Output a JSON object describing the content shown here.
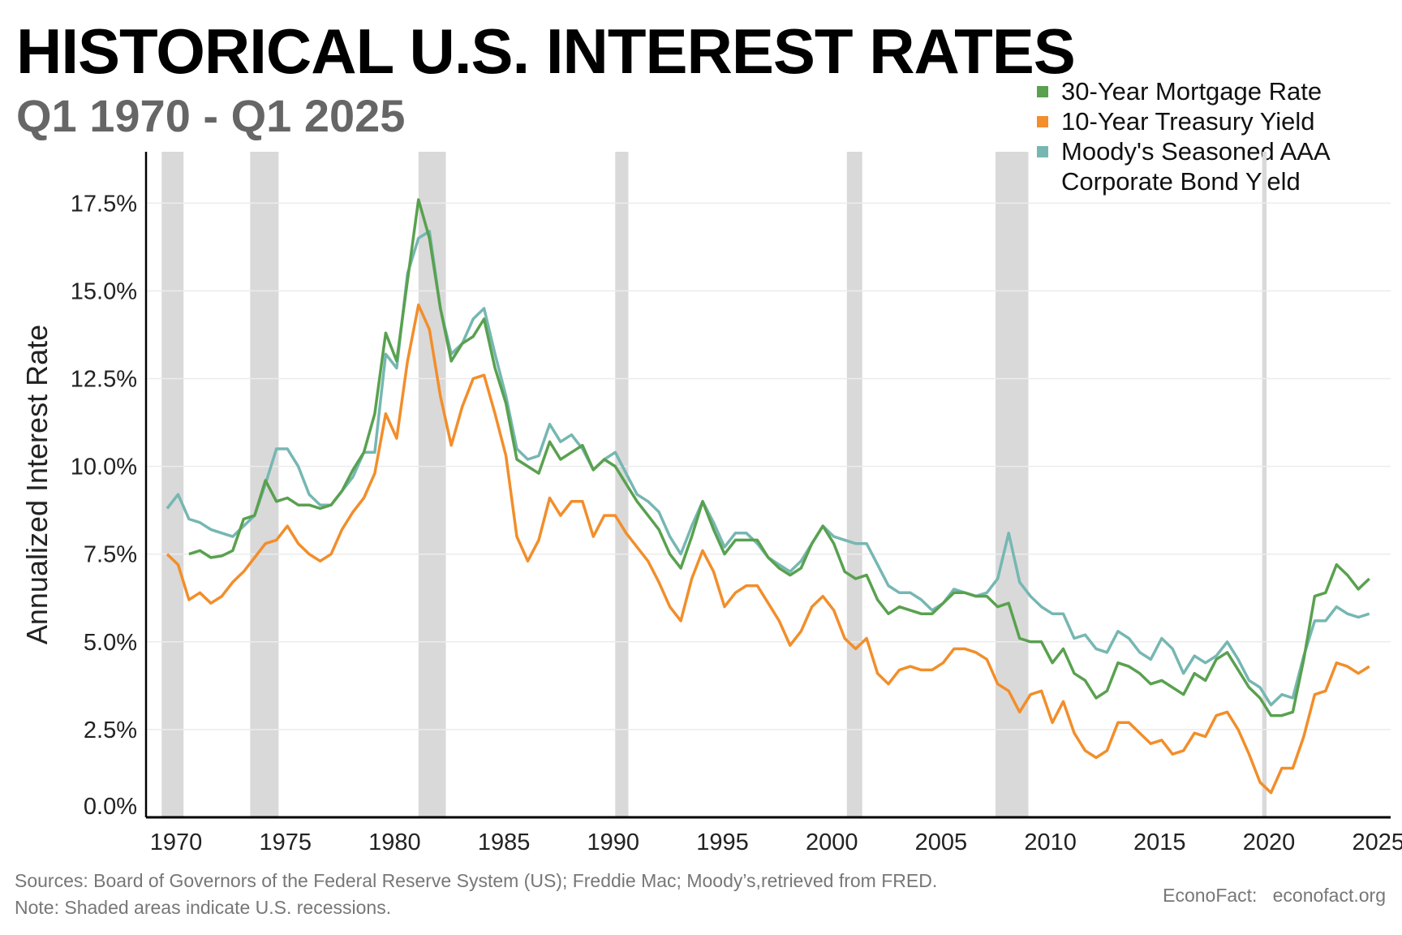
{
  "chart_data": {
    "type": "line",
    "title": "HISTORICAL U.S. INTEREST RATES",
    "subtitle": "Q1 1970 - Q1 2025",
    "ylabel": "Annualized Interest Rate",
    "xlabel": "",
    "ylim": [
      0,
      18.5
    ],
    "xlim": [
      1969.7,
      2025.6
    ],
    "yticks": [
      "0.0%",
      "2.5%",
      "5.0%",
      "7.5%",
      "10.0%",
      "12.5%",
      "15.0%",
      "17.5%"
    ],
    "ytick_values": [
      0,
      2.5,
      5,
      7.5,
      10,
      12.5,
      15,
      17.5
    ],
    "xticks": [
      "1970",
      "1975",
      "1980",
      "1985",
      "1990",
      "1995",
      "2000",
      "2005",
      "2010",
      "2015",
      "2020",
      "2025"
    ],
    "xtick_values": [
      1970,
      1975,
      1980,
      1985,
      1990,
      1995,
      2000,
      2005,
      2010,
      2015,
      2020,
      2025
    ],
    "grid": "horizontal",
    "legend_position": "top-right",
    "x_start": 1970,
    "x_step": 0.5,
    "recessions": [
      [
        1969.75,
        1970.75
      ],
      [
        1973.8,
        1975.1
      ],
      [
        1981.5,
        1982.75
      ],
      [
        1990.5,
        1991.1
      ],
      [
        2001.1,
        2001.8
      ],
      [
        2007.9,
        2009.4
      ],
      [
        2020.1,
        2020.3
      ]
    ],
    "series": [
      {
        "name": "30-Year Mortgage Rate",
        "color": "#59a14f",
        "values": [
          null,
          null,
          7.5,
          7.6,
          7.4,
          7.45,
          7.6,
          8.5,
          8.6,
          9.6,
          9.0,
          9.1,
          8.9,
          8.9,
          8.8,
          8.9,
          9.3,
          9.9,
          10.4,
          11.5,
          13.8,
          13.0,
          15.3,
          17.6,
          16.5,
          14.5,
          13.0,
          13.5,
          13.7,
          14.2,
          12.8,
          11.8,
          10.2,
          10.0,
          9.8,
          10.7,
          10.2,
          10.4,
          10.6,
          9.9,
          10.2,
          10.0,
          9.5,
          9.0,
          8.6,
          8.2,
          7.5,
          7.1,
          8.0,
          9.0,
          8.2,
          7.5,
          7.9,
          7.9,
          7.9,
          7.4,
          7.1,
          6.9,
          7.1,
          7.8,
          8.3,
          7.8,
          7.0,
          6.8,
          6.9,
          6.2,
          5.8,
          6.0,
          5.9,
          5.8,
          5.8,
          6.1,
          6.4,
          6.4,
          6.3,
          6.3,
          6.0,
          6.1,
          5.1,
          5.0,
          5.0,
          4.4,
          4.8,
          4.1,
          3.9,
          3.4,
          3.6,
          4.4,
          4.3,
          4.1,
          3.8,
          3.9,
          3.7,
          3.5,
          4.1,
          3.9,
          4.5,
          4.7,
          4.2,
          3.7,
          3.4,
          2.9,
          2.9,
          3.0,
          4.5,
          6.3,
          6.4,
          7.2,
          6.9,
          6.5,
          6.8
        ]
      },
      {
        "name": "10-Year Treasury Yield",
        "color": "#f28e2b",
        "values": [
          7.5,
          7.2,
          6.2,
          6.4,
          6.1,
          6.3,
          6.7,
          7.0,
          7.4,
          7.8,
          7.9,
          8.3,
          7.8,
          7.5,
          7.3,
          7.5,
          8.2,
          8.7,
          9.1,
          9.8,
          11.5,
          10.8,
          13.0,
          14.6,
          13.9,
          12.0,
          10.6,
          11.7,
          12.5,
          12.6,
          11.5,
          10.3,
          8.0,
          7.3,
          7.9,
          9.1,
          8.6,
          9.0,
          9.0,
          8.0,
          8.6,
          8.6,
          8.1,
          7.7,
          7.3,
          6.7,
          6.0,
          5.6,
          6.8,
          7.6,
          7.0,
          6.0,
          6.4,
          6.6,
          6.6,
          6.1,
          5.6,
          4.9,
          5.3,
          6.0,
          6.3,
          5.9,
          5.1,
          4.8,
          5.1,
          4.1,
          3.8,
          4.2,
          4.3,
          4.2,
          4.2,
          4.4,
          4.8,
          4.8,
          4.7,
          4.5,
          3.8,
          3.6,
          3.0,
          3.5,
          3.6,
          2.7,
          3.3,
          2.4,
          1.9,
          1.7,
          1.9,
          2.7,
          2.7,
          2.4,
          2.1,
          2.2,
          1.8,
          1.9,
          2.4,
          2.3,
          2.9,
          3.0,
          2.5,
          1.8,
          1.0,
          0.7,
          1.4,
          1.4,
          2.3,
          3.5,
          3.6,
          4.4,
          4.3,
          4.1,
          4.3
        ]
      },
      {
        "name": "Moody's Seasoned AAA Corporate Bond Yield",
        "color": "#76b7b2",
        "values": [
          8.8,
          9.2,
          8.5,
          8.4,
          8.2,
          8.1,
          8.0,
          8.3,
          8.6,
          9.5,
          10.5,
          10.5,
          10.0,
          9.2,
          8.9,
          8.9,
          9.3,
          9.7,
          10.4,
          10.4,
          13.2,
          12.8,
          15.5,
          16.5,
          16.7,
          14.5,
          13.2,
          13.5,
          14.2,
          14.5,
          13.2,
          12.0,
          10.5,
          10.2,
          10.3,
          11.2,
          10.7,
          10.9,
          10.5,
          9.9,
          10.2,
          10.4,
          9.8,
          9.2,
          9.0,
          8.7,
          8.0,
          7.5,
          8.3,
          9.0,
          8.4,
          7.7,
          8.1,
          8.1,
          7.8,
          7.4,
          7.2,
          7.0,
          7.3,
          7.8,
          8.3,
          8.0,
          7.9,
          7.8,
          7.8,
          7.2,
          6.6,
          6.4,
          6.4,
          6.2,
          5.9,
          6.1,
          6.5,
          6.4,
          6.3,
          6.4,
          6.8,
          8.1,
          6.7,
          6.3,
          6.0,
          5.8,
          5.8,
          5.1,
          5.2,
          4.8,
          4.7,
          5.3,
          5.1,
          4.7,
          4.5,
          5.1,
          4.8,
          4.1,
          4.6,
          4.4,
          4.6,
          5.0,
          4.5,
          3.9,
          3.7,
          3.2,
          3.5,
          3.4,
          4.6,
          5.6,
          5.6,
          6.0,
          5.8,
          5.7,
          5.8
        ]
      }
    ],
    "legend": [
      "30-Year Mortgage Rate",
      "10-Year Treasury Yield",
      "Moody's Seasoned AAA",
      "Corporate Bond Yield"
    ]
  },
  "footer": {
    "sources": "Sources: Board of Governors of the Federal Reserve System (US); Freddie Mac; Moody’s,retrieved from FRED.",
    "note": "Note: Shaded areas indicate U.S. recessions.",
    "credit": "EconoFact:   econofact.org"
  }
}
